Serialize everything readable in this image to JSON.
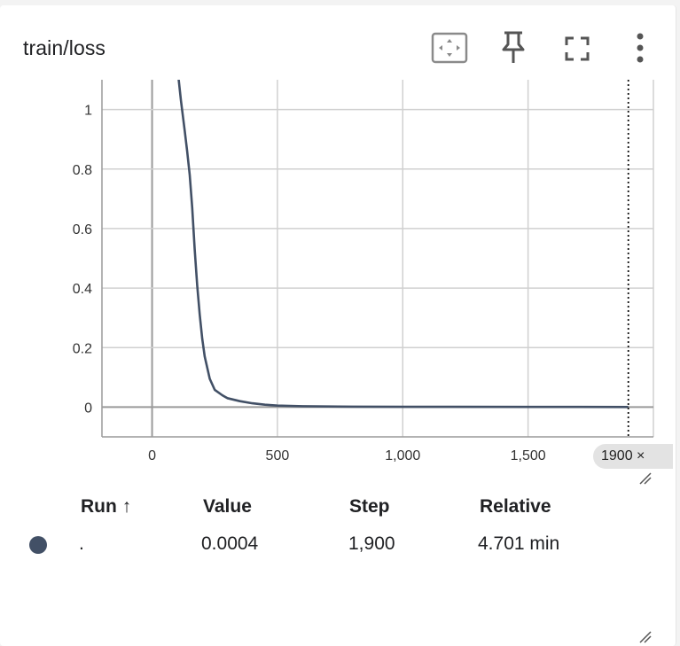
{
  "card": {
    "title": "train/loss"
  },
  "toolbar": {
    "icons": [
      "fit-domain-icon",
      "pin-icon",
      "fullscreen-icon",
      "more-vert-icon"
    ]
  },
  "chart_data": {
    "type": "line",
    "title": "train/loss",
    "xlabel": "",
    "ylabel": "",
    "xlim": [
      -200,
      2000
    ],
    "ylim": [
      -0.1,
      1.1
    ],
    "x_ticks": [
      0,
      500,
      1000,
      1500
    ],
    "x_tick_labels": [
      "0",
      "500",
      "1,000",
      "1,500"
    ],
    "y_ticks": [
      0,
      0.2,
      0.4,
      0.6,
      0.8,
      1
    ],
    "y_tick_labels": [
      "0",
      "0.2",
      "0.4",
      "0.6",
      "0.8",
      "1"
    ],
    "grid": true,
    "series": [
      {
        "color": "#425066",
        "x": [
          105,
          115,
          130,
          140,
          150,
          160,
          170,
          180,
          190,
          200,
          210,
          230,
          250,
          280,
          300,
          350,
          400,
          450,
          500,
          600,
          700,
          800,
          1000,
          1200,
          1500,
          1700,
          1900
        ],
        "y": [
          1.11,
          1.03,
          0.93,
          0.86,
          0.78,
          0.67,
          0.53,
          0.41,
          0.31,
          0.23,
          0.17,
          0.095,
          0.058,
          0.04,
          0.03,
          0.02,
          0.013,
          0.008,
          0.005,
          0.003,
          0.002,
          0.0015,
          0.001,
          0.0008,
          0.0006,
          0.0005,
          0.0004
        ]
      }
    ],
    "cursor_step": 1900
  },
  "step_badge": {
    "label": "1900 ×"
  },
  "table": {
    "headers": {
      "run": "Run ↑",
      "value": "Value",
      "step": "Step",
      "relative": "Relative"
    },
    "rows": [
      {
        "color": "#425066",
        "run": ".",
        "value": "0.0004",
        "step": "1,900",
        "relative": "4.701 min"
      }
    ]
  }
}
